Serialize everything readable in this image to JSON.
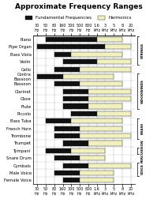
{
  "chart_data": {
    "type": "bar",
    "orientation": "horizontal",
    "title": "Approximate Frequency Ranges",
    "categories": [
      "Piano",
      "Pipe Organ",
      "Bass Viola",
      "Violin",
      "Cello",
      "Contra\nBassoon",
      "Bassoon",
      "Clarinet",
      "Oboe",
      "Flute",
      "Piccolo",
      "Bass Tuba",
      "French Horn",
      "Trombone",
      "Trumpet",
      "Tympani",
      "Snare Drum",
      "Cymbals",
      "Male Voice",
      "Female Voice"
    ],
    "series": [
      {
        "name": "Fundamental Frequencies",
        "color": "#111111",
        "values": [
          [
            2,
            8
          ],
          [
            1,
            9
          ],
          [
            3,
            5
          ],
          [
            4,
            8
          ],
          [
            3,
            6
          ],
          [
            1,
            4
          ],
          [
            3,
            6
          ],
          [
            4,
            7
          ],
          [
            4,
            7
          ],
          [
            4,
            7
          ],
          [
            5,
            8
          ],
          [
            2,
            5
          ],
          [
            3,
            6
          ],
          [
            3,
            6
          ],
          [
            4,
            7
          ],
          [
            2,
            5
          ],
          [
            3,
            6
          ],
          [
            4,
            7
          ],
          [
            3,
            6
          ],
          [
            4,
            6
          ]
        ]
      },
      {
        "name": "Harmonics",
        "color": "#f0f0c0",
        "values": [
          [
            8,
            11
          ],
          [
            9,
            12
          ],
          [
            5,
            11
          ],
          [
            8,
            12
          ],
          [
            6,
            12
          ],
          [
            4,
            10
          ],
          [
            6,
            11
          ],
          [
            7,
            12
          ],
          [
            7,
            12
          ],
          [
            7,
            11
          ],
          [
            8,
            12
          ],
          [
            5,
            11
          ],
          [
            6,
            11
          ],
          [
            6,
            12
          ],
          [
            7,
            11
          ],
          [
            5,
            9
          ],
          [
            6,
            9
          ],
          [
            7,
            12
          ],
          [
            6,
            10
          ],
          [
            6,
            10
          ]
        ]
      }
    ],
    "xlim": [
      0.5,
      12.5
    ],
    "xticks": [
      {
        "value": 1,
        "label": "30\nHz"
      },
      {
        "value": 2,
        "label": "50\nHz"
      },
      {
        "value": 3,
        "label": "80\nHz"
      },
      {
        "value": 4,
        "label": "160\nHz"
      },
      {
        "value": 5,
        "label": "300\nHz"
      },
      {
        "value": 6,
        "label": "500\nHz"
      },
      {
        "value": 7,
        "label": "800\nHz"
      },
      {
        "value": 8,
        "label": "1.6\nkHz"
      },
      {
        "value": 9,
        "label": "3\nkHz"
      },
      {
        "value": 10,
        "label": "5\nkHz"
      },
      {
        "value": 11,
        "label": "8\nkHz"
      },
      {
        "value": 12,
        "label": "20\nkHz"
      }
    ],
    "grid": true,
    "legend": "upper center",
    "annotations": [
      {
        "text": "STRINGS",
        "first": "Piano",
        "last": "Violin"
      },
      {
        "text": "WOODWINDS",
        "first": "Contra\nBassoon",
        "last": "Flute"
      },
      {
        "text": "BRASS",
        "first": "Bass Tuba",
        "last": "Trombone"
      },
      {
        "text": "PERCUSSION",
        "first": "Tympani",
        "last": "Tympani"
      },
      {
        "text": "VOICE",
        "first": "Cymbals",
        "last": "Male Voice"
      }
    ]
  }
}
